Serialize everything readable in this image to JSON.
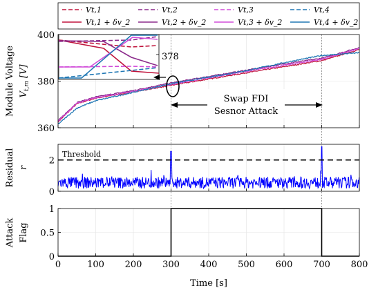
{
  "chart_data": [
    {
      "type": "line",
      "panel": "voltage",
      "ylabel_line1": "Module Voltage",
      "ylabel_line2": "V_{t,m} [V]",
      "ylim": [
        360,
        400
      ],
      "xlim": [
        0,
        800
      ],
      "yticks": [
        "360",
        "380",
        "400"
      ],
      "xticks": [
        0,
        100,
        200,
        300,
        400,
        500,
        600,
        700,
        800
      ],
      "grid": true,
      "legend": {
        "placement": "top",
        "entries": [
          {
            "label": "V_{t,1}",
            "color": "#c0143c",
            "dash": true
          },
          {
            "label": "V_{t,2}",
            "color": "#8b2a8b",
            "dash": true
          },
          {
            "label": "V_{t,3}",
            "color": "#d14cd9",
            "dash": true
          },
          {
            "label": "V_{t,4}",
            "color": "#1f77b4",
            "dash": true
          },
          {
            "label": "V_{t,1} + δ_{v_2}",
            "color": "#c0143c",
            "dash": false
          },
          {
            "label": "V_{t,2} + δ_{v_2}",
            "color": "#8b2a8b",
            "dash": false
          },
          {
            "label": "V_{t,3} + δ_{v_2}",
            "color": "#d14cd9",
            "dash": false
          },
          {
            "label": "V_{t,4} + δ_{v_2}",
            "color": "#1f77b4",
            "dash": false
          }
        ]
      },
      "series": [
        {
          "color": "#c0143c",
          "x": [
            0,
            50,
            100,
            200,
            300,
            400,
            500,
            600,
            700,
            800
          ],
          "y": [
            362.5,
            370.3,
            372.7,
            375.4,
            378.2,
            380.9,
            383.6,
            386.2,
            388.8,
            393.6
          ]
        },
        {
          "color": "#8b2a8b",
          "x": [
            0,
            50,
            100,
            200,
            300,
            400,
            500,
            600,
            700,
            800
          ],
          "y": [
            363.0,
            370.8,
            373.2,
            376.0,
            379.2,
            382.0,
            384.7,
            387.4,
            389.8,
            394.4
          ]
        },
        {
          "color": "#d14cd9",
          "x": [
            0,
            50,
            100,
            200,
            300,
            400,
            500,
            600,
            700,
            800
          ],
          "y": [
            362.8,
            370.5,
            372.9,
            375.6,
            378.6,
            381.4,
            384.2,
            386.8,
            389.4,
            394.0
          ]
        },
        {
          "color": "#1f77b4",
          "x": [
            0,
            50,
            100,
            200,
            300,
            400,
            500,
            600,
            700,
            800
          ],
          "y": [
            361.5,
            368.4,
            371.6,
            375.2,
            378.9,
            381.7,
            384.5,
            387.9,
            391.0,
            392.2
          ]
        }
      ],
      "annotation": {
        "line1": "Swap FDI",
        "line2": "Sesnor Attack",
        "x_start": 300,
        "x_end": 700
      },
      "inset": {
        "ytick_label": "378"
      }
    },
    {
      "type": "line",
      "panel": "residual",
      "ylabel_line1": "Residual",
      "ylabel_line2": "r",
      "ylim": [
        0,
        3
      ],
      "yticks": [
        "0",
        "2"
      ],
      "threshold": {
        "value": 2,
        "label": "Threshold"
      },
      "spikes": [
        {
          "x": 300,
          "y": 2.55
        },
        {
          "x": 700,
          "y": 2.85
        }
      ],
      "noise_level": 0.55,
      "color": "#0000ff"
    },
    {
      "type": "line",
      "panel": "flag",
      "ylabel_line1": "Attack",
      "ylabel_line2": "Flag",
      "ylim": [
        0,
        1
      ],
      "yticks": [
        "0",
        "0.5",
        "1"
      ],
      "xlabel": "Time [s]",
      "xticks": [
        "0",
        "100",
        "200",
        "300",
        "400",
        "500",
        "600",
        "700",
        "800"
      ],
      "x": [
        0,
        300,
        300,
        700,
        700,
        800
      ],
      "y": [
        0,
        0,
        1,
        1,
        0,
        0
      ]
    }
  ]
}
